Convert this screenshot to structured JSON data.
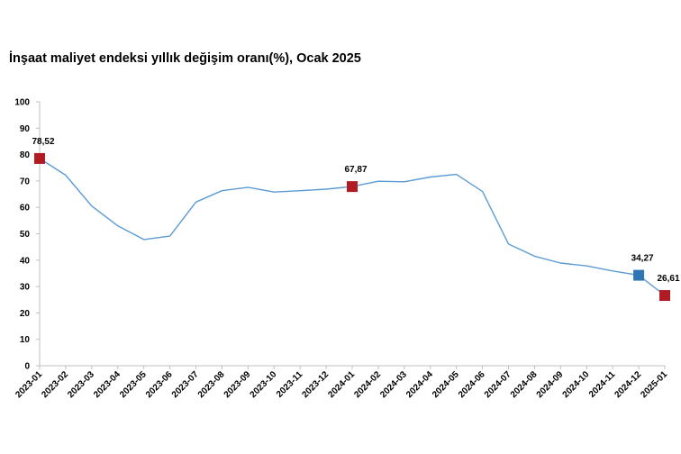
{
  "title": "İnşaat maliyet endeksi yıllık değişim oranı(%), Ocak 2025",
  "chart_data": {
    "type": "line",
    "title": "İnşaat maliyet endeksi yıllık değişim oranı(%), Ocak 2025",
    "xlabel": "",
    "ylabel": "",
    "ylim": [
      0,
      100
    ],
    "yticks": [
      0,
      10,
      20,
      30,
      40,
      50,
      60,
      70,
      80,
      90,
      100
    ],
    "grid": false,
    "categories": [
      "2023-01",
      "2023-02",
      "2023-03",
      "2023-04",
      "2023-05",
      "2023-06",
      "2023-07",
      "2023-08",
      "2023-09",
      "2023-10",
      "2023-11",
      "2023-12",
      "2024-01",
      "2024-02",
      "2024-03",
      "2024-04",
      "2024-05",
      "2024-06",
      "2024-07",
      "2024-08",
      "2024-09",
      "2024-10",
      "2024-11",
      "2024-12",
      "2025-01"
    ],
    "series": [
      {
        "values": [
          78.52,
          72.2,
          60.5,
          53.0,
          47.8,
          49.1,
          62.0,
          66.3,
          67.6,
          65.8,
          66.3,
          66.9,
          67.87,
          69.9,
          69.7,
          71.5,
          72.5,
          66.0,
          46.1,
          41.5,
          38.9,
          37.8,
          35.9,
          34.27,
          26.61
        ],
        "color": "#5b9bd5"
      }
    ],
    "highlights": [
      {
        "category": "2023-01",
        "value": 78.52,
        "label": "78,52",
        "color": "#b01c24"
      },
      {
        "category": "2024-01",
        "value": 67.87,
        "label": "67,87",
        "color": "#b01c24"
      },
      {
        "category": "2024-12",
        "value": 34.27,
        "label": "34,27",
        "color": "#2e75b6"
      },
      {
        "category": "2025-01",
        "value": 26.61,
        "label": "26,61",
        "color": "#b01c24"
      }
    ],
    "axis_color": "#bfbfbf"
  }
}
